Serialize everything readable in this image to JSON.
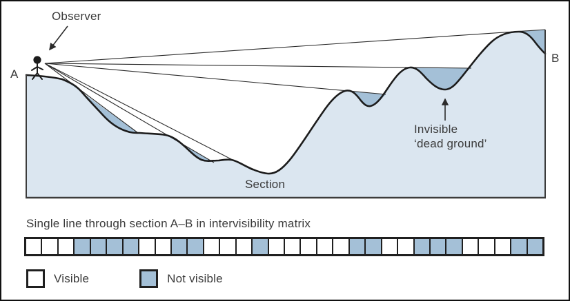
{
  "colors": {
    "terrain_fill": "#dbe6f0",
    "dead_ground_fill": "#a4c0d7",
    "outline": "#2b2b2b",
    "text": "#3a3a3a",
    "visible_cell": "#ffffff",
    "not_visible_cell": "#a4c0d7"
  },
  "diagram": {
    "observer_label": "Observer",
    "point_a_label": "A",
    "point_b_label": "B",
    "invisible_label_line1": "Invisible",
    "invisible_label_line2": "‘dead ground’",
    "section_label": "Section"
  },
  "matrix": {
    "caption": "Single line through section A–B in intervisibility matrix",
    "cells": [
      "visible",
      "visible",
      "visible",
      "not_visible",
      "not_visible",
      "not_visible",
      "not_visible",
      "visible",
      "visible",
      "not_visible",
      "not_visible",
      "visible",
      "visible",
      "visible",
      "not_visible",
      "visible",
      "visible",
      "visible",
      "visible",
      "visible",
      "not_visible",
      "not_visible",
      "visible",
      "visible",
      "not_visible",
      "not_visible",
      "not_visible",
      "visible",
      "visible",
      "visible",
      "not_visible",
      "not_visible"
    ]
  },
  "legend": {
    "visible_label": "Visible",
    "not_visible_label": "Not visible"
  }
}
